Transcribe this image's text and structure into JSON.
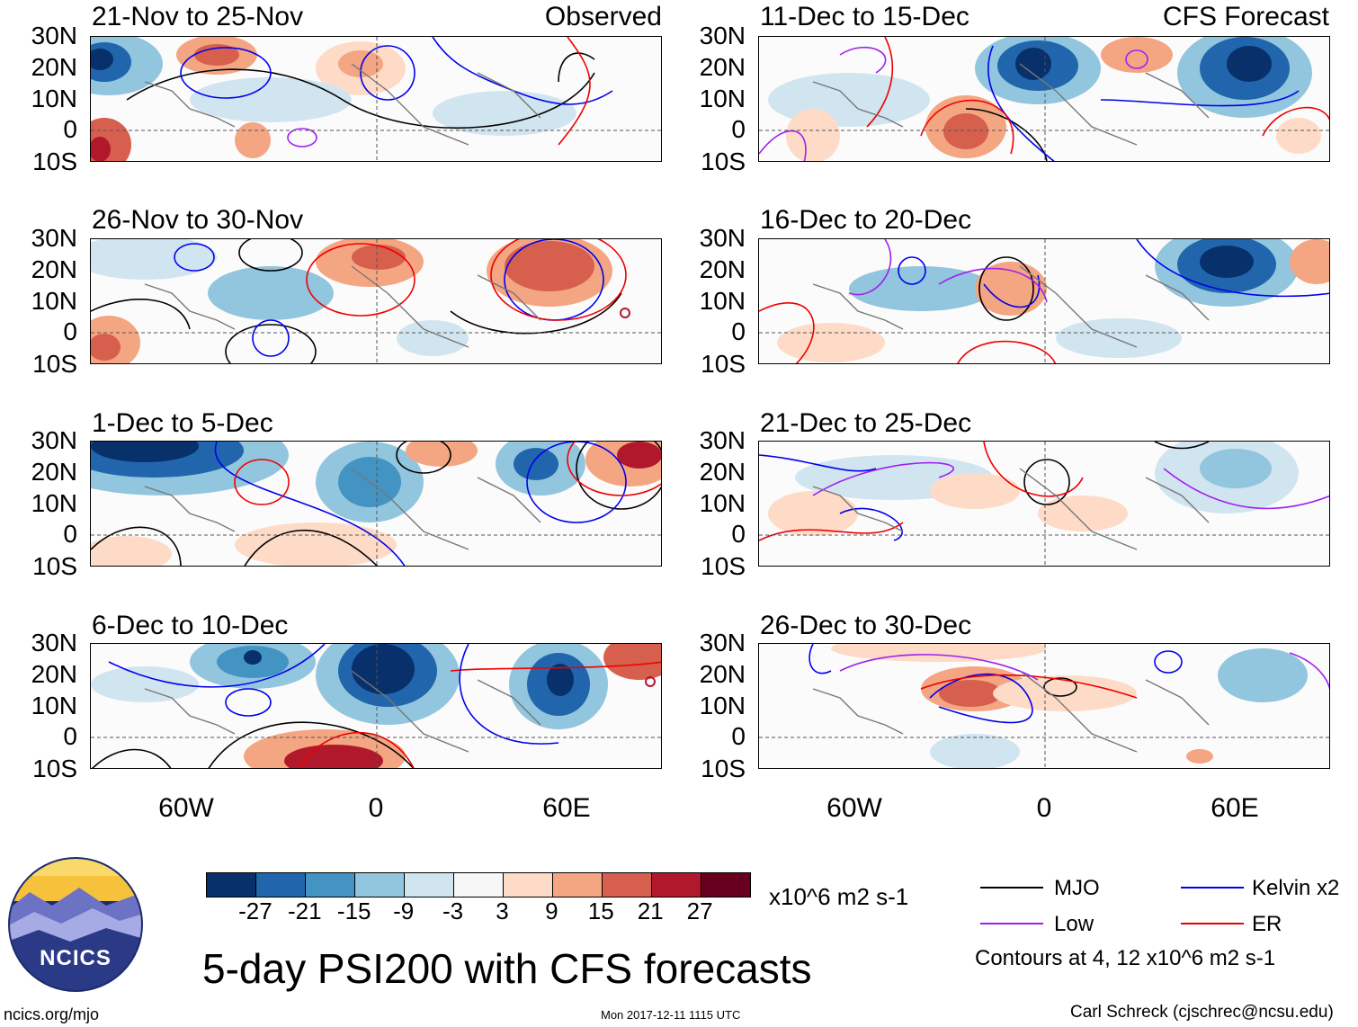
{
  "figure": {
    "title": "5-day PSI200 with CFS forecasts",
    "left_header": "Observed",
    "right_header": "CFS Forecast",
    "footer_left": "ncics.org/mjo",
    "footer_center": "Mon 2017-12-11 1115 UTC",
    "footer_right": "Carl Schreck (cjschrec@ncsu.edu)",
    "logo_text": "NCICS"
  },
  "panels_left": [
    {
      "title": "21-Nov to 25-Nov"
    },
    {
      "title": "26-Nov to 30-Nov"
    },
    {
      "title": "1-Dec to 5-Dec"
    },
    {
      "title": "6-Dec to 10-Dec"
    }
  ],
  "panels_right": [
    {
      "title": "11-Dec to 15-Dec"
    },
    {
      "title": "16-Dec to 20-Dec"
    },
    {
      "title": "21-Dec to 25-Dec"
    },
    {
      "title": "26-Dec to 30-Dec"
    }
  ],
  "axes": {
    "lat_labels": [
      "30N",
      "20N",
      "10N",
      "0",
      "10S"
    ],
    "lon_labels": [
      "60W",
      "0",
      "60E"
    ]
  },
  "colorbar": {
    "units": "x10^6 m2 s-1",
    "ticks": [
      "-27",
      "-21",
      "-15",
      "-9",
      "-3",
      "3",
      "9",
      "15",
      "21",
      "27"
    ],
    "colors": [
      "#08306b",
      "#2166ac",
      "#4393c3",
      "#92c5de",
      "#d1e5f0",
      "#f7f7f7",
      "#fddbc7",
      "#f4a582",
      "#d6604d",
      "#b2182b",
      "#67001f"
    ]
  },
  "legend": {
    "items": [
      {
        "label": "MJO",
        "color": "#000000"
      },
      {
        "label": "Kelvin x2",
        "color": "#0000ee"
      },
      {
        "label": "Low",
        "color": "#a020f0"
      },
      {
        "label": "ER",
        "color": "#ee0000"
      }
    ],
    "note": "Contours at 4, 12 x10^6 m2 s-1"
  }
}
